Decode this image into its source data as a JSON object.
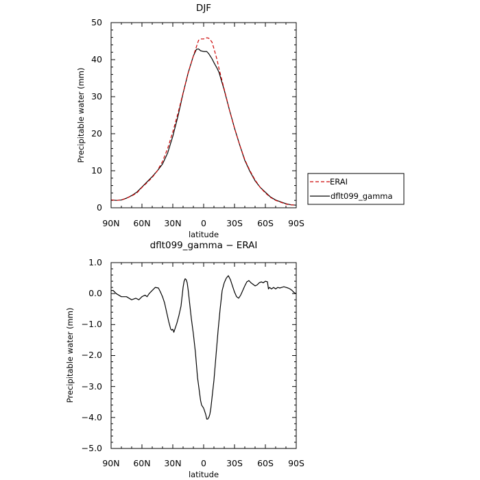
{
  "charts": [
    {
      "title": "DJF",
      "xlabel": "latitude",
      "ylabel": "Precipitable water (mm)",
      "xticks": [
        "90N",
        "60N",
        "30N",
        "0",
        "30S",
        "60S",
        "90S"
      ],
      "yticks": [
        "0",
        "10",
        "20",
        "30",
        "40",
        "50"
      ]
    },
    {
      "title": "dflt099_gamma − ERAI",
      "xlabel": "latitude",
      "ylabel": "Precipitable water (mm)",
      "xticks": [
        "90N",
        "60N",
        "30N",
        "0",
        "30S",
        "60S",
        "90S"
      ],
      "yticks": [
        "1.0",
        "0.0",
        "−1.0",
        "−2.0",
        "−3.0",
        "−4.0",
        "−5.0"
      ]
    }
  ],
  "legend": {
    "items": [
      "ERAI",
      "dflt099_gamma"
    ]
  },
  "colors": {
    "erai": "#cc0000",
    "model": "#000000"
  },
  "chart_data": [
    {
      "type": "line",
      "title": "DJF",
      "xlabel": "latitude",
      "ylabel": "Precipitable water (mm)",
      "x_direction": "90N to 90S (positive = N)",
      "xlim": [
        90,
        -90
      ],
      "ylim": [
        0,
        50
      ],
      "legend_position": "right",
      "series": [
        {
          "name": "ERAI",
          "style": "dashed",
          "x": [
            90,
            85,
            80,
            75,
            70,
            65,
            60,
            55,
            50,
            45,
            40,
            35,
            30,
            25,
            20,
            15,
            10,
            7,
            5,
            3,
            0,
            -3,
            -5,
            -8,
            -10,
            -13,
            -15,
            -20,
            -25,
            -30,
            -35,
            -40,
            -45,
            -50,
            -55,
            -60,
            -65,
            -70,
            -75,
            -80,
            -85,
            -90
          ],
          "y": [
            2.1,
            2.0,
            2.1,
            2.6,
            3.2,
            4.0,
            5.5,
            6.8,
            8.2,
            10.0,
            12.5,
            16.0,
            20.5,
            25.5,
            31.0,
            36.5,
            41.0,
            43.5,
            45.2,
            45.6,
            45.6,
            45.9,
            45.8,
            44.8,
            43.0,
            40.0,
            37.5,
            32.0,
            26.5,
            21.5,
            17.0,
            13.0,
            10.0,
            7.5,
            5.5,
            4.0,
            2.8,
            2.0,
            1.5,
            1.0,
            0.8,
            0.7
          ]
        },
        {
          "name": "dflt099_gamma",
          "style": "solid",
          "x": [
            90,
            85,
            80,
            75,
            70,
            65,
            60,
            55,
            50,
            45,
            40,
            35,
            30,
            25,
            20,
            15,
            10,
            7,
            5,
            3,
            0,
            -3,
            -5,
            -8,
            -10,
            -13,
            -15,
            -20,
            -25,
            -30,
            -35,
            -40,
            -45,
            -50,
            -55,
            -60,
            -65,
            -70,
            -75,
            -80,
            -85,
            -90
          ],
          "y": [
            2.1,
            2.0,
            2.1,
            2.6,
            3.3,
            4.2,
            5.6,
            7.0,
            8.4,
            10.0,
            11.8,
            14.8,
            19.3,
            24.7,
            30.9,
            36.5,
            41.0,
            42.8,
            42.9,
            42.4,
            42.2,
            42.2,
            41.6,
            40.3,
            39.2,
            37.7,
            36.5,
            31.8,
            26.5,
            21.5,
            17.0,
            12.8,
            9.8,
            7.3,
            5.5,
            4.2,
            2.9,
            2.1,
            1.6,
            1.1,
            0.8,
            0.7
          ]
        }
      ]
    },
    {
      "type": "line",
      "title": "dflt099_gamma − ERAI",
      "xlabel": "latitude",
      "ylabel": "Precipitable water (mm)",
      "x_direction": "90N to 90S (positive = N)",
      "xlim": [
        90,
        -90
      ],
      "ylim": [
        -5,
        1
      ],
      "series": [
        {
          "name": "dflt099_gamma − ERAI",
          "style": "solid",
          "x": [
            90,
            88,
            85,
            80,
            75,
            70,
            66,
            63,
            60,
            57,
            55,
            53,
            50,
            47,
            44,
            42,
            40,
            38,
            36,
            34,
            32,
            31,
            30,
            29,
            28,
            26,
            24,
            22,
            21,
            20,
            19,
            18,
            17,
            16,
            15,
            14,
            12,
            10,
            8,
            6,
            5,
            4,
            3,
            2,
            1,
            0,
            -1,
            -2,
            -3,
            -4,
            -5,
            -6,
            -7,
            -8,
            -10,
            -12,
            -14,
            -16,
            -18,
            -20,
            -22,
            -24,
            -26,
            -28,
            -30,
            -32,
            -34,
            -36,
            -38,
            -40,
            -42,
            -44,
            -46,
            -48,
            -50,
            -52,
            -54,
            -56,
            -58,
            -60,
            -62,
            -63,
            -64,
            -66,
            -68,
            -70,
            -72,
            -74,
            -76,
            -78,
            -80,
            -82,
            -84,
            -86,
            -88,
            -90
          ],
          "y": [
            0.1,
            0.1,
            0.0,
            -0.1,
            -0.1,
            -0.2,
            -0.15,
            -0.2,
            -0.1,
            -0.05,
            -0.1,
            0.0,
            0.1,
            0.2,
            0.18,
            0.05,
            -0.1,
            -0.3,
            -0.6,
            -0.9,
            -1.15,
            -1.18,
            -1.15,
            -1.25,
            -1.15,
            -0.95,
            -0.7,
            -0.4,
            -0.1,
            0.2,
            0.4,
            0.48,
            0.45,
            0.35,
            0.1,
            -0.2,
            -0.8,
            -1.3,
            -1.9,
            -2.7,
            -2.95,
            -3.2,
            -3.45,
            -3.6,
            -3.65,
            -3.7,
            -3.8,
            -3.9,
            -4.05,
            -4.05,
            -4.0,
            -3.9,
            -3.7,
            -3.4,
            -2.8,
            -2.0,
            -1.2,
            -0.5,
            0.1,
            0.35,
            0.5,
            0.58,
            0.45,
            0.25,
            0.05,
            -0.1,
            -0.15,
            -0.05,
            0.1,
            0.25,
            0.38,
            0.42,
            0.35,
            0.3,
            0.25,
            0.28,
            0.35,
            0.38,
            0.35,
            0.4,
            0.38,
            0.15,
            0.2,
            0.15,
            0.2,
            0.15,
            0.2,
            0.18,
            0.2,
            0.22,
            0.2,
            0.18,
            0.15,
            0.1,
            0.03,
            0.0
          ]
        }
      ]
    }
  ]
}
